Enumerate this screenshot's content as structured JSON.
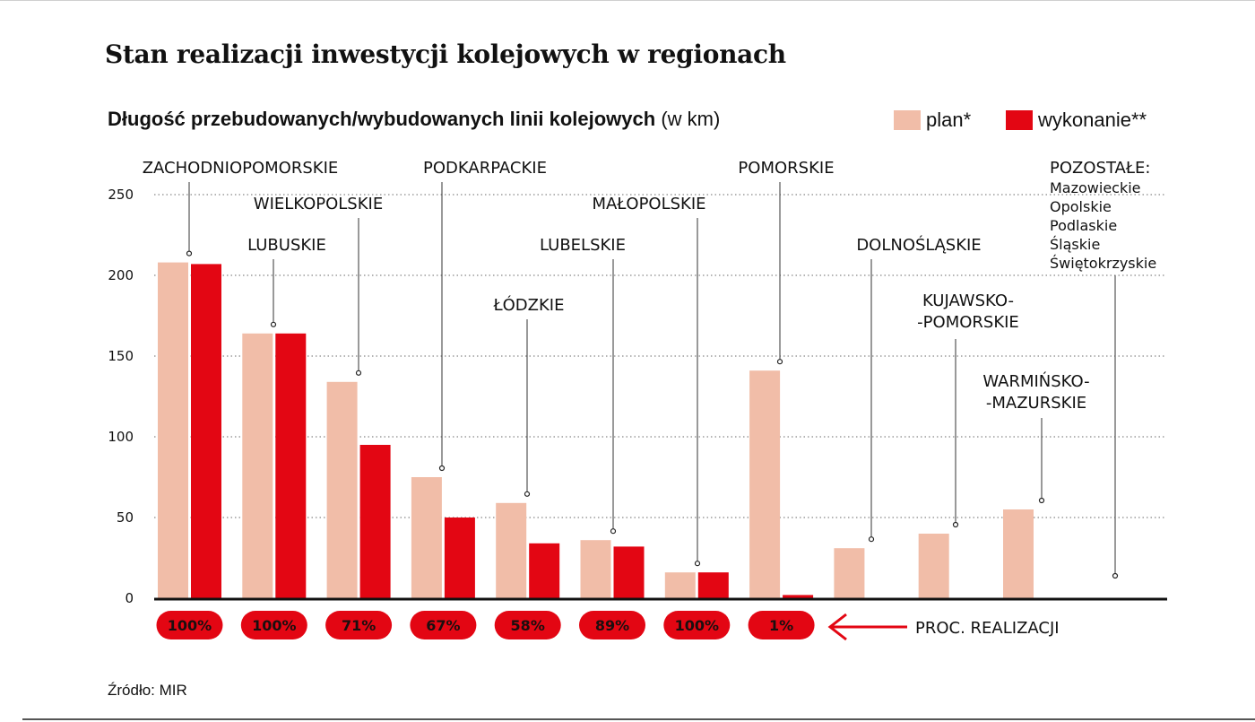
{
  "title": "Stan realizacji inwestycji kolejowych w regionach",
  "subtitle": {
    "bold": "Długość przebudowanych/wybudowanych linii kolejowych",
    "unit": "(w km)"
  },
  "legend": {
    "plan_label": "plan*",
    "done_label": "wykonanie**"
  },
  "colors": {
    "plan": "#f1bda8",
    "done": "#e30613",
    "pill": "#e30613",
    "grid": "#888888",
    "axis": "#111111"
  },
  "source": "Źródło: MIR",
  "proc_label": "PROC. REALIZACJI",
  "chart_data": {
    "type": "bar",
    "ylim": [
      0,
      250
    ],
    "yticks": [
      0,
      50,
      100,
      150,
      200,
      250
    ],
    "grid": "dotted horizontal",
    "categories": [
      "ZACHODNIOPOMORSKIE",
      "LUBUSKIE",
      "WIELKOPOLSKIE",
      "PODKARPACKIE",
      "ŁÓDZKIE",
      "LUBELSKIE",
      "MAŁOPOLSKIE",
      "POMORSKIE",
      "DOLNOŚLĄSKIE",
      "KUJAWSKO-\n-POMORSKIE",
      "WARMIŃSKO-\n-MAZURSKIE",
      "POZOSTAŁE:"
    ],
    "series": [
      {
        "name": "plan*",
        "values": [
          208,
          164,
          134,
          75,
          59,
          36,
          16,
          141,
          31,
          40,
          55,
          null
        ]
      },
      {
        "name": "wykonanie**",
        "values": [
          207,
          164,
          95,
          50,
          34,
          32,
          16,
          2,
          null,
          null,
          null,
          null
        ]
      }
    ],
    "realization": [
      "100%",
      "100%",
      "71%",
      "67%",
      "58%",
      "89%",
      "100%",
      "1%"
    ],
    "others_list": [
      "Mazowieckie",
      "Opolskie",
      "Podlaskie",
      "Śląskie",
      "Świętokrzyskie"
    ]
  }
}
